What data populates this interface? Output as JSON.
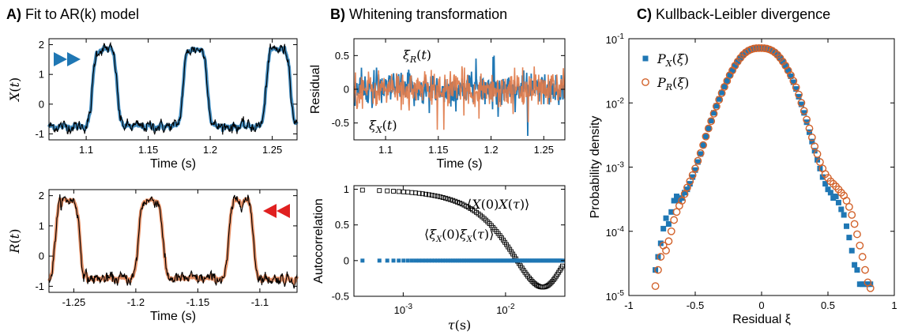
{
  "chart_data": [
    {
      "id": "A1",
      "type": "line",
      "panel_letter": "A)",
      "panel_title": "Fit to AR(k) model",
      "xlabel": "Time (s)",
      "ylabel": "X(t)",
      "xlim": [
        1.07,
        1.27
      ],
      "ylim": [
        -1.2,
        2.2
      ],
      "xticks": [
        1.1,
        1.15,
        1.2,
        1.25
      ],
      "xtick_labels": [
        "1.1",
        "1.15",
        "1.2",
        "1.25"
      ],
      "yticks": [
        -1,
        0,
        1,
        2
      ],
      "ytick_labels": [
        "-1",
        "0",
        "1",
        "2"
      ],
      "marker": "forward-arrow-icon",
      "pulses": [
        [
          1.105,
          1.125
        ],
        [
          1.178,
          1.198
        ],
        [
          1.245,
          1.265
        ]
      ],
      "low_level": -0.75,
      "high_level": 1.85,
      "series": [
        {
          "role": "data",
          "color": "#000000"
        },
        {
          "role": "fit",
          "color": "#1f77b4"
        }
      ]
    },
    {
      "id": "A2",
      "type": "line",
      "xlabel": "Time (s)",
      "ylabel": "R(t)",
      "xlim": [
        -1.27,
        -1.07
      ],
      "ylim": [
        -1.2,
        2.2
      ],
      "xticks": [
        -1.25,
        -1.2,
        -1.15,
        -1.1
      ],
      "xtick_labels": [
        "-1.25",
        "-1.2",
        "-1.15",
        "-1.1"
      ],
      "yticks": [
        -1,
        0,
        1,
        2
      ],
      "ytick_labels": [
        "-1",
        "0",
        "1",
        "2"
      ],
      "marker": "backward-arrow-icon",
      "pulses": [
        [
          -1.265,
          -1.245
        ],
        [
          -1.198,
          -1.178
        ],
        [
          -1.125,
          -1.105
        ]
      ],
      "low_level": -0.75,
      "high_level": 1.85,
      "series": [
        {
          "role": "data",
          "color": "#000000"
        },
        {
          "role": "fit",
          "color": "#e07b4a"
        }
      ]
    },
    {
      "id": "B1",
      "type": "line",
      "panel_letter": "B)",
      "panel_title": "Whitening transformation",
      "xlabel": "Time (s)",
      "ylabel": "Residual",
      "xlim": [
        1.07,
        1.27
      ],
      "ylim": [
        -0.75,
        0.75
      ],
      "xticks": [
        1.1,
        1.15,
        1.2,
        1.25
      ],
      "xtick_labels": [
        "1.1",
        "1.15",
        "1.2",
        "1.25"
      ],
      "yticks": [
        -0.5,
        0,
        0.5
      ],
      "ytick_labels": [
        "-0.5",
        "0",
        "0.5"
      ],
      "series": [
        {
          "name": "ξX(t)",
          "color": "#1f77b4",
          "spread": 0.12
        },
        {
          "name": "ξR(t)",
          "color": "#e07b4a",
          "spread": 0.13
        }
      ]
    },
    {
      "id": "B2",
      "type": "scatter",
      "xlabel": "τ(s)",
      "ylabel": "Autocorrelation",
      "xscale": "log",
      "xlim": [
        0.00033,
        0.038
      ],
      "ylim": [
        -0.5,
        1.05
      ],
      "xticks": [
        0.001,
        0.01
      ],
      "xtick_labels": [
        "10-3",
        "10-2"
      ],
      "yticks": [
        -0.5,
        0,
        0.5,
        1
      ],
      "ytick_labels": [
        "-0.5",
        "0",
        "0.5",
        "1"
      ],
      "series": [
        {
          "name": "⟨X(0)X(τ)⟩",
          "color": "#000000",
          "marker": "open-square",
          "tau_min": 0.0004,
          "tau_max": 0.036,
          "corr_time": 0.0095,
          "min_value": -0.38
        },
        {
          "name": "⟨ξX(0)ξX(τ)⟩",
          "color": "#1f77b4",
          "marker": "filled-square",
          "tau_min": 0.0004,
          "tau_max": 0.036,
          "value": 0.0
        }
      ]
    },
    {
      "id": "C",
      "type": "scatter",
      "panel_letter": "C)",
      "panel_title": "Kullback-Leibler divergence",
      "xlabel": "Residual ξ",
      "ylabel": "Probability density",
      "yscale": "log",
      "xlim": [
        -1,
        1
      ],
      "ylim": [
        1e-05,
        0.1
      ],
      "xticks": [
        -1,
        -0.5,
        0,
        0.5,
        1
      ],
      "xtick_labels": [
        "-1",
        "-0.5",
        "0",
        "0.5",
        "1"
      ],
      "yticks": [
        1e-05,
        0.0001,
        0.001,
        0.01,
        0.1
      ],
      "ytick_labels": [
        "10-5",
        "10-4",
        "10-3",
        "10-2",
        "10-1"
      ],
      "legend": "top-left",
      "series": [
        {
          "name": "PX(ξ)",
          "color": "#1f77b4",
          "marker": "filled-square",
          "x": [
            -0.8,
            -0.78,
            -0.76,
            -0.74,
            -0.72,
            -0.7,
            -0.68,
            -0.66,
            -0.64,
            -0.62,
            -0.6,
            -0.58,
            -0.56,
            -0.54,
            -0.52,
            -0.5,
            -0.48,
            -0.46,
            -0.44,
            -0.42,
            -0.4,
            -0.38,
            -0.36,
            -0.34,
            -0.32,
            -0.3,
            -0.28,
            -0.26,
            -0.24,
            -0.22,
            -0.2,
            -0.18,
            -0.16,
            -0.14,
            -0.12,
            -0.1,
            -0.08,
            -0.06,
            -0.04,
            -0.02,
            0.0,
            0.02,
            0.04,
            0.06,
            0.08,
            0.1,
            0.12,
            0.14,
            0.16,
            0.18,
            0.2,
            0.22,
            0.24,
            0.26,
            0.28,
            0.3,
            0.32,
            0.34,
            0.36,
            0.38,
            0.4,
            0.42,
            0.44,
            0.46,
            0.48,
            0.5,
            0.52,
            0.54,
            0.56,
            0.58,
            0.6,
            0.62,
            0.64,
            0.66,
            0.68,
            0.7,
            0.72,
            0.74,
            0.76,
            0.78,
            0.8,
            0.82
          ],
          "y": [
            2.5e-05,
            4e-05,
            6.5e-05,
            0.00011,
            0.00016,
            0.00013,
            0.0002,
            0.0003,
            0.00035,
            0.0003,
            0.00033,
            0.0004,
            0.00045,
            0.00055,
            0.0007,
            0.0009,
            0.0012,
            0.0016,
            0.0022,
            0.003,
            0.004,
            0.0053,
            0.007,
            0.009,
            0.0115,
            0.0145,
            0.018,
            0.022,
            0.027,
            0.032,
            0.038,
            0.044,
            0.05,
            0.056,
            0.061,
            0.065,
            0.068,
            0.07,
            0.071,
            0.0715,
            0.0715,
            0.071,
            0.07,
            0.068,
            0.065,
            0.061,
            0.056,
            0.05,
            0.044,
            0.038,
            0.032,
            0.026,
            0.021,
            0.0165,
            0.0125,
            0.0095,
            0.007,
            0.005,
            0.0035,
            0.0025,
            0.0018,
            0.0013,
            0.00095,
            0.0007,
            0.00055,
            0.00045,
            0.0004,
            0.00033,
            0.00035,
            0.00028,
            0.00022,
            0.00018,
            0.00012,
            8e-05,
            5e-05,
            3e-05,
            2.5e-05,
            1.5e-05,
            1.5e-05,
            1.5e-05,
            1.5e-05,
            1.5e-05
          ]
        },
        {
          "name": "PR(ξ)",
          "color": "#d2622b",
          "marker": "open-circle",
          "x": [
            -0.8,
            -0.78,
            -0.76,
            -0.74,
            -0.72,
            -0.7,
            -0.68,
            -0.66,
            -0.64,
            -0.62,
            -0.6,
            -0.58,
            -0.56,
            -0.54,
            -0.52,
            -0.5,
            -0.48,
            -0.46,
            -0.44,
            -0.42,
            -0.4,
            -0.38,
            -0.36,
            -0.34,
            -0.32,
            -0.3,
            -0.28,
            -0.26,
            -0.24,
            -0.22,
            -0.2,
            -0.18,
            -0.16,
            -0.14,
            -0.12,
            -0.1,
            -0.08,
            -0.06,
            -0.04,
            -0.02,
            0.0,
            0.02,
            0.04,
            0.06,
            0.08,
            0.1,
            0.12,
            0.14,
            0.16,
            0.18,
            0.2,
            0.22,
            0.24,
            0.26,
            0.28,
            0.3,
            0.32,
            0.34,
            0.36,
            0.38,
            0.4,
            0.42,
            0.44,
            0.46,
            0.48,
            0.5,
            0.52,
            0.54,
            0.56,
            0.58,
            0.6,
            0.62,
            0.64,
            0.66,
            0.68,
            0.7,
            0.72,
            0.74,
            0.76,
            0.78,
            0.8,
            0.82
          ],
          "y": [
            1.4e-05,
            2.5e-05,
            4e-05,
            6e-05,
            5e-05,
            7e-05,
            0.0001,
            0.00015,
            0.0002,
            0.00025,
            0.0003,
            0.00038,
            0.00048,
            0.0006,
            0.00075,
            0.00095,
            0.00125,
            0.00165,
            0.0022,
            0.003,
            0.004,
            0.0052,
            0.0068,
            0.0088,
            0.0112,
            0.0142,
            0.0178,
            0.022,
            0.027,
            0.032,
            0.038,
            0.044,
            0.05,
            0.056,
            0.061,
            0.065,
            0.068,
            0.07,
            0.071,
            0.0715,
            0.0715,
            0.071,
            0.07,
            0.068,
            0.065,
            0.061,
            0.056,
            0.05,
            0.044,
            0.038,
            0.032,
            0.027,
            0.022,
            0.0175,
            0.0135,
            0.01,
            0.0075,
            0.0055,
            0.004,
            0.0029,
            0.0021,
            0.0016,
            0.0012,
            0.00095,
            0.00078,
            0.00068,
            0.0006,
            0.00055,
            0.0005,
            0.00045,
            0.0004,
            0.00036,
            0.0003,
            0.00024,
            0.00018,
            0.00013,
            9e-05,
            6e-05,
            4e-05,
            2.5e-05,
            1.6e-05,
            1.3e-05
          ]
        }
      ]
    }
  ]
}
